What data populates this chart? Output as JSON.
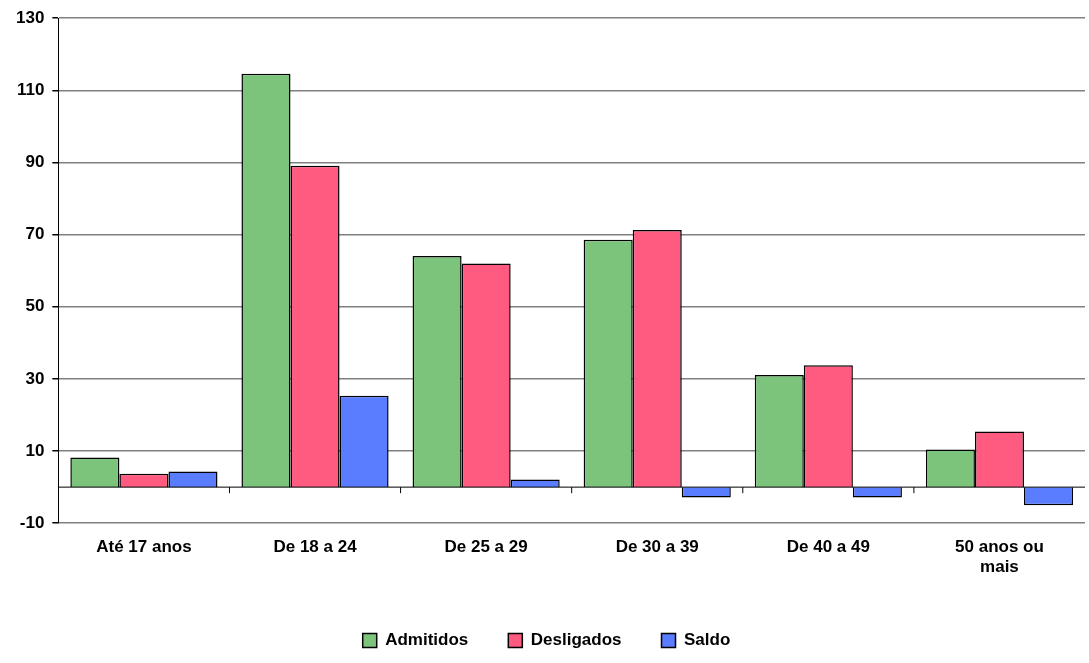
{
  "chart_data": {
    "type": "bar",
    "categories": [
      "Até 17 anos",
      "De 18 a 24",
      "De 25 a 29",
      "De 30 a 39",
      "De 40 a 49",
      "50 anos ou mais"
    ],
    "series": [
      {
        "name": "Admitidos",
        "color": "#7cc47c",
        "values": [
          8.2,
          114.6,
          64.1,
          68.6,
          31.1,
          10.4
        ]
      },
      {
        "name": "Desligados",
        "color": "#ff5a80",
        "values": [
          3.7,
          89.1,
          62,
          71.3,
          33.8,
          15.4
        ]
      },
      {
        "name": "Saldo",
        "color": "#5a7cff",
        "values": [
          4.3,
          25.3,
          2.1,
          -2.9,
          -2.9,
          -5
        ]
      }
    ],
    "ylim": [
      -10,
      130
    ],
    "yticks": [
      -10,
      10,
      30,
      50,
      70,
      90,
      110,
      130
    ],
    "grid": "y",
    "legend": "bottom"
  }
}
